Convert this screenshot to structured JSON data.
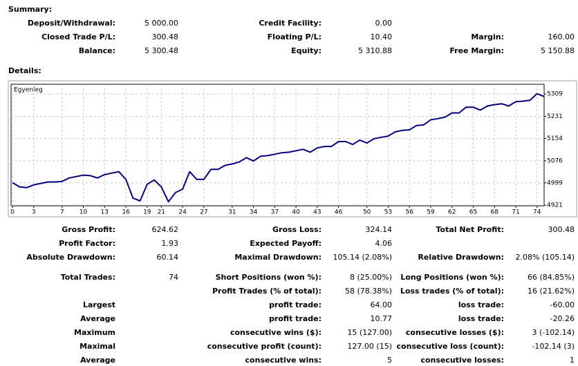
{
  "summary": {
    "title": "Summary:",
    "rows": [
      [
        [
          "Deposit/Withdrawal:",
          "5 000.00"
        ],
        [
          "Credit Facility:",
          "0.00"
        ],
        null
      ],
      [
        [
          "Closed Trade P/L:",
          "300.48"
        ],
        [
          "Floating P/L:",
          "10.40"
        ],
        [
          "Margin:",
          "160.00"
        ]
      ],
      [
        [
          "Balance:",
          "5 300.48"
        ],
        [
          "Equity:",
          "5 310.88"
        ],
        [
          "Free Margin:",
          "5 150.88"
        ]
      ]
    ]
  },
  "details": {
    "title": "Details:",
    "rows": [
      [
        [
          "Gross Profit:",
          "624.62"
        ],
        [
          "Gross Loss:",
          "324.14"
        ],
        [
          "Total Net Profit:",
          "300.48"
        ]
      ],
      [
        [
          "Profit Factor:",
          "1.93"
        ],
        [
          "Expected Payoff:",
          "4.06"
        ],
        null
      ],
      [
        [
          "Absolute Drawdown:",
          "60.14"
        ],
        [
          "Maximal Drawdown:",
          "105.14 (2.08%)"
        ],
        [
          "Relative Drawdown:",
          "2.08% (105.14)"
        ]
      ],
      [
        [
          "Total Trades:",
          "74"
        ],
        [
          "Short Positions (won %):",
          "8 (25.00%)"
        ],
        [
          "Long Positions (won %):",
          "66 (84.85%)"
        ]
      ],
      [
        null,
        [
          "Profit Trades (% of total):",
          "58 (78.38%)"
        ],
        [
          "Loss trades (% of total):",
          "16 (21.62%)"
        ]
      ],
      [
        [
          "Largest",
          null
        ],
        [
          "profit trade:",
          "64.00"
        ],
        [
          "loss trade:",
          "-60.00"
        ]
      ],
      [
        [
          "Average",
          null
        ],
        [
          "profit trade:",
          "10.77"
        ],
        [
          "loss trade:",
          "-20.26"
        ]
      ],
      [
        [
          "Maximum",
          null
        ],
        [
          "consecutive wins ($):",
          "15 (127.00)"
        ],
        [
          "consecutive losses ($):",
          "3 (-102.14)"
        ]
      ],
      [
        [
          "Maximal",
          null
        ],
        [
          "consecutive profit (count):",
          "127.00 (15)"
        ],
        [
          "consecutive loss (count):",
          "-102.14 (3)"
        ]
      ],
      [
        [
          "Average",
          null
        ],
        [
          "consecutive wins:",
          "5"
        ],
        [
          "consecutive losses:",
          "1"
        ]
      ]
    ]
  },
  "chart_data": {
    "type": "line",
    "legend": "Egyenleg",
    "color": "#000080",
    "grid": true,
    "x": [
      0,
      1,
      2,
      3,
      4,
      5,
      6,
      7,
      8,
      9,
      10,
      11,
      12,
      13,
      14,
      15,
      16,
      17,
      18,
      19,
      20,
      21,
      22,
      23,
      24,
      25,
      26,
      27,
      28,
      29,
      30,
      31,
      32,
      33,
      34,
      35,
      36,
      37,
      38,
      39,
      40,
      41,
      42,
      43,
      44,
      45,
      46,
      47,
      48,
      49,
      50,
      51,
      52,
      53,
      54,
      55,
      56,
      57,
      58,
      59,
      60,
      61,
      62,
      63,
      64,
      65,
      66,
      67,
      68,
      69,
      70,
      71,
      72,
      73,
      74,
      75
    ],
    "values": [
      5000,
      4985,
      4982,
      4992,
      4997,
      5002,
      5002,
      5004,
      5016,
      5021,
      5026,
      5024,
      5016,
      5028,
      5033,
      5038,
      5011,
      4946,
      4936,
      4994,
      5009,
      4985,
      4933,
      4965,
      4977,
      5038,
      5011,
      5011,
      5046,
      5046,
      5060,
      5065,
      5072,
      5087,
      5075,
      5092,
      5094,
      5099,
      5104,
      5106,
      5111,
      5116,
      5106,
      5121,
      5126,
      5126,
      5143,
      5143,
      5133,
      5148,
      5138,
      5153,
      5158,
      5162,
      5177,
      5182,
      5184,
      5199,
      5201,
      5219,
      5223,
      5228,
      5243,
      5243,
      5263,
      5263,
      5253,
      5267,
      5272,
      5275,
      5267,
      5282,
      5284,
      5287,
      5310,
      5300
    ],
    "xlim": [
      0,
      75
    ],
    "ylim": [
      4919,
      5343
    ],
    "xticks": [
      0,
      3,
      7,
      10,
      13,
      16,
      19,
      21,
      24,
      27,
      31,
      34,
      37,
      40,
      43,
      46,
      50,
      53,
      56,
      59,
      62,
      65,
      68,
      71,
      74
    ],
    "yticks": [
      4921,
      4999,
      5076,
      5154,
      5231,
      5309
    ]
  }
}
